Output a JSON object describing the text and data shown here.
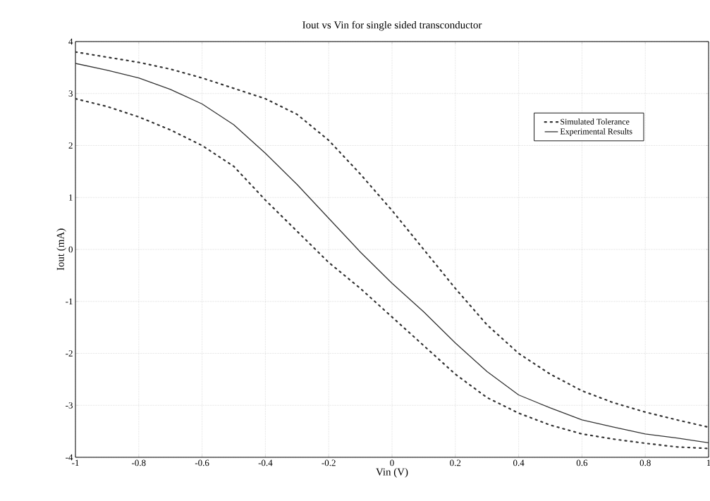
{
  "chart_data": {
    "type": "line",
    "title": "Iout vs Vin for single sided transconductor",
    "xlabel": "Vin (V)",
    "ylabel": "Iout (mA)",
    "x": [
      -1,
      -0.9,
      -0.8,
      -0.7,
      -0.6,
      -0.5,
      -0.4,
      -0.3,
      -0.2,
      -0.1,
      0,
      0.1,
      0.2,
      0.3,
      0.4,
      0.5,
      0.6,
      0.7,
      0.8,
      0.9,
      1
    ],
    "series": [
      {
        "name": "Simulated Tolerance",
        "color": "#333333",
        "line_style": "dotted",
        "values": [
          3.8,
          3.7,
          3.6,
          3.47,
          3.3,
          3.1,
          2.9,
          2.6,
          2.1,
          1.45,
          0.75,
          0.0,
          -0.75,
          -1.45,
          -2.0,
          -2.4,
          -2.72,
          -2.95,
          -3.13,
          -3.28,
          -3.42
        ]
      },
      {
        "name": "Experimental Results",
        "color": "#333333",
        "line_style": "solid",
        "values": [
          3.58,
          3.45,
          3.3,
          3.08,
          2.8,
          2.4,
          1.85,
          1.25,
          0.6,
          -0.05,
          -0.65,
          -1.2,
          -1.8,
          -2.35,
          -2.8,
          -3.05,
          -3.28,
          -3.42,
          -3.55,
          -3.63,
          -3.72
        ]
      },
      {
        "color": "#333333",
        "line_style": "dotted",
        "values": [
          2.9,
          2.75,
          2.55,
          2.3,
          2.0,
          1.6,
          0.95,
          0.35,
          -0.25,
          -0.75,
          -1.3,
          -1.85,
          -2.4,
          -2.85,
          -3.15,
          -3.38,
          -3.55,
          -3.65,
          -3.73,
          -3.8,
          -3.83
        ]
      }
    ],
    "xlim": [
      -1,
      1
    ],
    "ylim": [
      -4,
      4
    ],
    "xticks": [
      -1,
      -0.8,
      -0.6,
      -0.4,
      -0.2,
      0,
      0.2,
      0.4,
      0.6,
      0.8,
      1
    ],
    "yticks": [
      -4,
      -3,
      -2,
      -1,
      0,
      1,
      2,
      3,
      4
    ],
    "grid": true,
    "legend": "top right",
    "marker": "none"
  }
}
